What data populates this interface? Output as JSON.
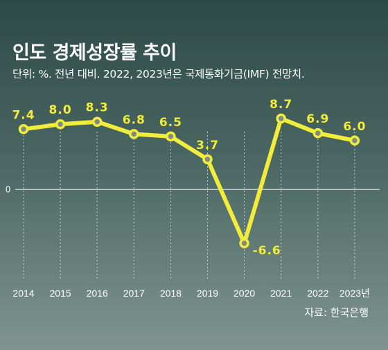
{
  "header": {
    "title": "인도 경제성장률 추이",
    "subtitle": "단위: %. 전년 대비. 2022, 2023년은 국제통화기금(IMF) 전망치."
  },
  "footer": {
    "source": "자료: 한국은행"
  },
  "colors": {
    "line": "#f2ec3a",
    "marker_fill": "#7d8a86",
    "gridline": "#e8eceb",
    "zero_line": "#c5cdcb"
  },
  "chart_data": {
    "type": "line",
    "title": "인도 경제성장률 추이",
    "x": [
      "2014",
      "2015",
      "2016",
      "2017",
      "2018",
      "2019",
      "2020",
      "2021",
      "2022",
      "2023"
    ],
    "x_tick_labels": [
      "2014",
      "2015",
      "2016",
      "2017",
      "2018",
      "2019",
      "2020",
      "2021",
      "2022",
      "2023년"
    ],
    "value_labels": [
      "7.4",
      "8.0",
      "8.3",
      "6.8",
      "6.5",
      "3.7",
      "-6.6",
      "8.7",
      "6.9",
      "6.0"
    ],
    "series": [
      {
        "values": [
          7.4,
          8.0,
          8.3,
          6.8,
          6.5,
          3.7,
          -6.6,
          8.7,
          6.9,
          6.0
        ]
      }
    ],
    "y_tick_labels": [
      "0"
    ],
    "ylim": [
      -6.6,
      8.7
    ],
    "grid": "vertical dotted",
    "legend": "none"
  }
}
